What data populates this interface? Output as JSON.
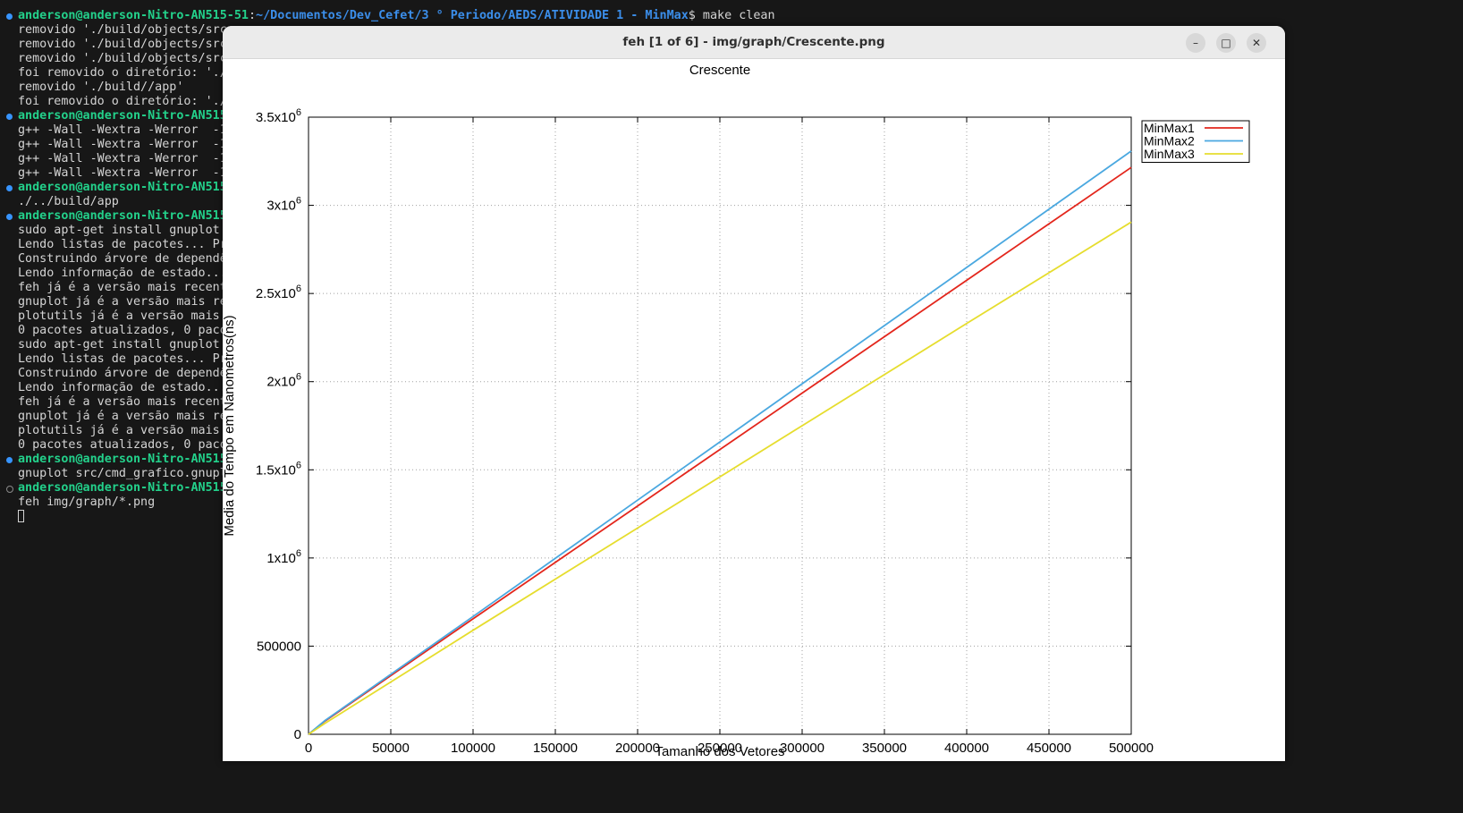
{
  "terminal": {
    "prompt_user": "anderson@anderson-Nitro-AN515-51",
    "prompt_path": "~/Documentos/Dev_Cefet/3 ° Periodo/AEDS/ATIVIDADE 1 - MinMax",
    "first_command": "$ make clean",
    "lines": [
      "removido './build/objects/src",
      "removido './build/objects/src",
      "removido './build/objects/src",
      "foi removido o diretório: './",
      "removido './build//app'",
      "foi removido o diretório: './",
      "anderson@anderson-Nitro-AN515",
      "g++ -Wall -Wextra -Werror  -1",
      "g++ -Wall -Wextra -Werror  -1",
      "g++ -Wall -Wextra -Werror  -1",
      "g++ -Wall -Wextra -Werror  -1",
      "anderson@anderson-Nitro-AN515",
      "./../build/app",
      "anderson@anderson-Nitro-AN515",
      "sudo apt-get install gnuplot",
      "Lendo listas de pacotes... Pr",
      "Construindo árvore de dependê",
      "Lendo informação de estado...",
      "feh já é a versão mais recent",
      "gnuplot já é a versão mais re",
      "plotutils já é a versão mais",
      "0 pacotes atualizados, 0 paco",
      "sudo apt-get install gnuplot",
      "Lendo listas de pacotes... Pr",
      "Construindo árvore de dependê",
      "Lendo informação de estado...",
      "feh já é a versão mais recent",
      "gnuplot já é a versão mais re",
      "plotutils já é a versão mais",
      "0 pacotes atualizados, 0 paco",
      "anderson@anderson-Nitro-AN515",
      "gnuplot src/cmd_grafico.gnupl",
      "anderson@anderson-Nitro-AN515",
      "feh img/graph/*.png"
    ]
  },
  "window": {
    "title": "feh [1 of 6] - img/graph/Crescente.png",
    "minimize_icon": "–",
    "maximize_icon": "□",
    "close_icon": "✕"
  },
  "chart_data": {
    "type": "line",
    "title": "Crescente",
    "xlabel": "Tamanho dos Vetores",
    "ylabel": "Media do Tempo em Nanometros(ns)",
    "xlim": [
      0,
      500000
    ],
    "ylim": [
      0,
      3500000
    ],
    "grid": true,
    "legend_position": "outside-top-right",
    "x_ticks": [
      "0",
      "50000",
      "100000",
      "150000",
      "200000",
      "250000",
      "300000",
      "350000",
      "400000",
      "450000",
      "500000"
    ],
    "y_ticks": [
      "0",
      "500000",
      "1x10^6",
      "1.5x10^6",
      "2x10^6",
      "2.5x10^6",
      "3x10^6",
      "3.5x10^6"
    ],
    "x": [
      0,
      10000,
      100000,
      200000,
      300000,
      400000,
      500000
    ],
    "series": [
      {
        "name": "MinMax1",
        "color": "#e3261c",
        "values": [
          0,
          75000,
          655000,
          1295000,
          1935000,
          2575000,
          3215000
        ]
      },
      {
        "name": "MinMax2",
        "color": "#4aa8e0",
        "values": [
          0,
          78000,
          668000,
          1328000,
          1988000,
          2648000,
          3308000
        ]
      },
      {
        "name": "MinMax3",
        "color": "#e6dd2e",
        "values": [
          0,
          62000,
          590000,
          1170000,
          1750000,
          2330000,
          2905000
        ]
      }
    ]
  }
}
